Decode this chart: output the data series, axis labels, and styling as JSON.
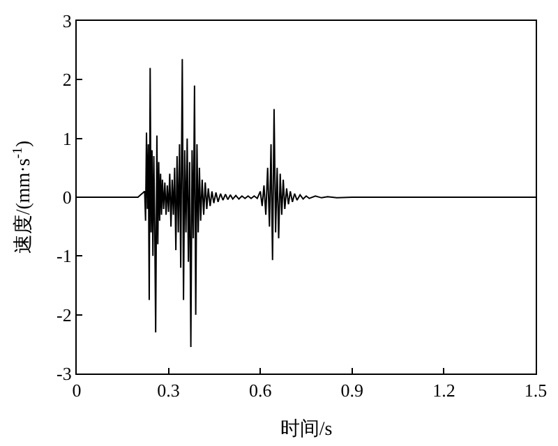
{
  "chart_data": {
    "type": "line",
    "xlabel": "时间/s",
    "ylabel": "速度/(mm·s$^{-1}$)",
    "xlim": [
      0,
      1.5
    ],
    "ylim": [
      -3,
      3
    ],
    "xticks": [
      0,
      0.3,
      0.6,
      0.9,
      1.2,
      1.5
    ],
    "yticks": [
      3,
      2,
      1,
      0,
      -1,
      -2,
      -3
    ],
    "marker": "none",
    "line_style": "solid",
    "series": [
      {
        "color": "#000000",
        "x": [
          0,
          0.2,
          0.222,
          0.225,
          0.228,
          0.231,
          0.234,
          0.237,
          0.24,
          0.243,
          0.246,
          0.249,
          0.252,
          0.255,
          0.258,
          0.262,
          0.265,
          0.268,
          0.271,
          0.274,
          0.277,
          0.28,
          0.284,
          0.288,
          0.292,
          0.296,
          0.3,
          0.304,
          0.308,
          0.312,
          0.316,
          0.32,
          0.324,
          0.328,
          0.332,
          0.336,
          0.34,
          0.345,
          0.349,
          0.353,
          0.357,
          0.361,
          0.365,
          0.369,
          0.373,
          0.377,
          0.381,
          0.385,
          0.389,
          0.393,
          0.397,
          0.401,
          0.405,
          0.41,
          0.415,
          0.42,
          0.425,
          0.43,
          0.436,
          0.442,
          0.448,
          0.455,
          0.462,
          0.47,
          0.478,
          0.486,
          0.494,
          0.502,
          0.51,
          0.52,
          0.53,
          0.54,
          0.55,
          0.56,
          0.57,
          0.58,
          0.59,
          0.6,
          0.606,
          0.612,
          0.618,
          0.624,
          0.63,
          0.635,
          0.64,
          0.645,
          0.65,
          0.655,
          0.66,
          0.665,
          0.67,
          0.675,
          0.68,
          0.686,
          0.692,
          0.698,
          0.705,
          0.712,
          0.72,
          0.73,
          0.74,
          0.75,
          0.76,
          0.78,
          0.8,
          0.82,
          0.85,
          0.9,
          1.0,
          1.2,
          1.5
        ],
        "values": [
          0,
          0,
          0.1,
          -0.4,
          1.1,
          -0.2,
          0.9,
          -1.75,
          2.2,
          -0.6,
          0.8,
          -1.0,
          0.7,
          -0.5,
          -2.3,
          1.05,
          -0.8,
          0.6,
          -0.4,
          0.4,
          -0.3,
          0.3,
          -0.2,
          0.25,
          -0.3,
          0.2,
          -0.25,
          0.4,
          -0.5,
          0.3,
          -0.3,
          0.5,
          -0.9,
          0.7,
          -0.6,
          0.9,
          -1.2,
          2.35,
          -1.75,
          0.8,
          -0.6,
          1.0,
          -1.1,
          0.6,
          -2.55,
          0.8,
          -0.7,
          1.9,
          -2.0,
          0.9,
          -0.6,
          0.5,
          -0.4,
          0.3,
          -0.3,
          0.25,
          -0.2,
          0.15,
          -0.15,
          0.1,
          -0.1,
          0.08,
          -0.08,
          0.06,
          -0.05,
          0.05,
          -0.04,
          0.04,
          -0.03,
          0.03,
          -0.03,
          0.02,
          -0.02,
          0.02,
          -0.02,
          0.02,
          -0.02,
          0.1,
          -0.15,
          0.2,
          -0.3,
          0.5,
          -0.5,
          0.9,
          -1.07,
          1.5,
          -0.6,
          0.5,
          -0.7,
          0.4,
          -0.3,
          0.3,
          -0.2,
          0.15,
          -0.12,
          0.1,
          -0.08,
          0.06,
          -0.05,
          0.04,
          -0.03,
          0.02,
          -0.02,
          0.02,
          -0.01,
          0.01,
          -0.01,
          0,
          0,
          0,
          0
        ]
      }
    ]
  }
}
